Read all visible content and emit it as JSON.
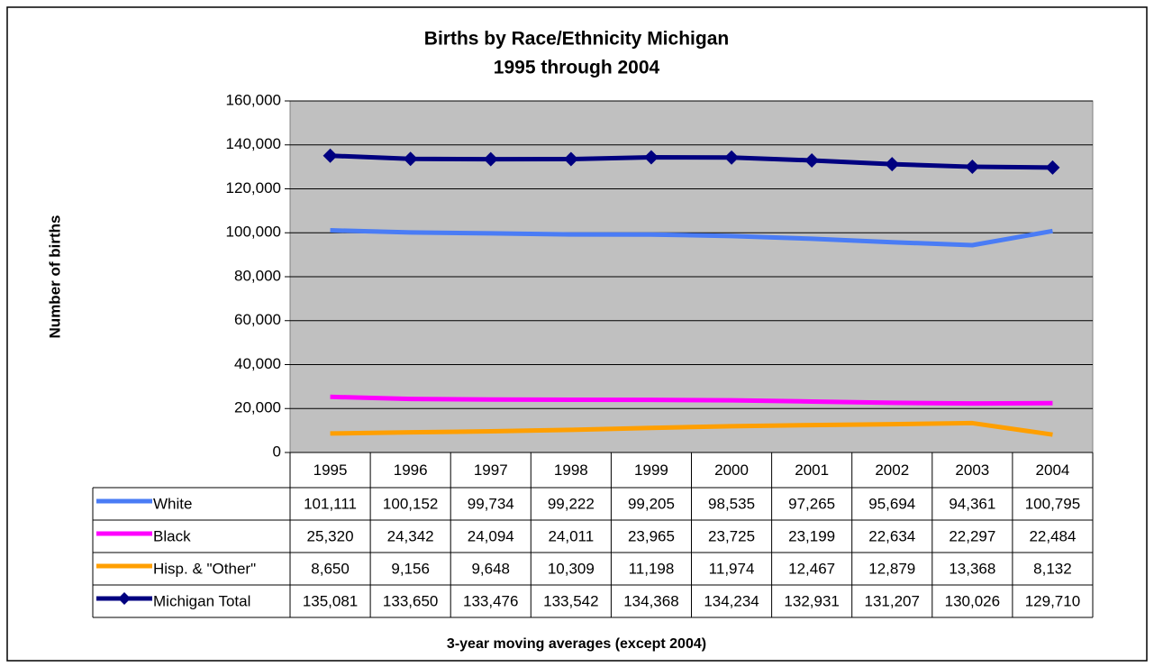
{
  "chart_data": {
    "type": "line",
    "title": "Births by Race/Ethnicity Michigan",
    "subtitle": "1995 through 2004",
    "y_label": "Number of births",
    "x_label": "3-year moving averages (except 2004)",
    "categories": [
      "1995",
      "1996",
      "1997",
      "1998",
      "1999",
      "2000",
      "2001",
      "2002",
      "2003",
      "2004"
    ],
    "series": [
      {
        "name": "White",
        "color": "#4a7cf5",
        "marker": false,
        "values": [
          101111,
          100152,
          99734,
          99222,
          99205,
          98535,
          97265,
          95694,
          94361,
          100795
        ],
        "value_labels": [
          "101,111",
          "100,152",
          "99,734",
          "99,222",
          "99,205",
          "98,535",
          "97,265",
          "95,694",
          "94,361",
          "100,795"
        ]
      },
      {
        "name": "Black",
        "color": "#ff00ff",
        "marker": false,
        "values": [
          25320,
          24342,
          24094,
          24011,
          23965,
          23725,
          23199,
          22634,
          22297,
          22484
        ],
        "value_labels": [
          "25,320",
          "24,342",
          "24,094",
          "24,011",
          "23,965",
          "23,725",
          "23,199",
          "22,634",
          "22,297",
          "22,484"
        ]
      },
      {
        "name": "Hisp. & \"Other\"",
        "color": "#ff9f00",
        "marker": false,
        "values": [
          8650,
          9156,
          9648,
          10309,
          11198,
          11974,
          12467,
          12879,
          13368,
          8132
        ],
        "value_labels": [
          "8,650",
          "9,156",
          "9,648",
          "10,309",
          "11,198",
          "11,974",
          "12,467",
          "12,879",
          "13,368",
          "8,132"
        ]
      },
      {
        "name": "Michigan Total",
        "color": "#000080",
        "marker": true,
        "values": [
          135081,
          133650,
          133476,
          133542,
          134368,
          134234,
          132931,
          131207,
          130026,
          129710
        ],
        "value_labels": [
          "135,081",
          "133,650",
          "133,476",
          "133,542",
          "134,368",
          "134,234",
          "132,931",
          "131,207",
          "130,026",
          "129,710"
        ]
      }
    ],
    "ylim": [
      0,
      160000
    ],
    "yticks": [
      0,
      {
        "value": 20000,
        "label": "20,000"
      },
      {
        "value": 40000,
        "label": "40,000"
      },
      {
        "value": 60000,
        "label": "60,000"
      },
      {
        "value": 80000,
        "label": "80,000"
      },
      {
        "value": 100000,
        "label": "100,000"
      },
      {
        "value": 120000,
        "label": "120,000"
      },
      {
        "value": 140000,
        "label": "140,000"
      },
      {
        "value": 160000,
        "label": "160,000"
      }
    ],
    "grid": true,
    "plot_background": "#c0c0c0"
  }
}
